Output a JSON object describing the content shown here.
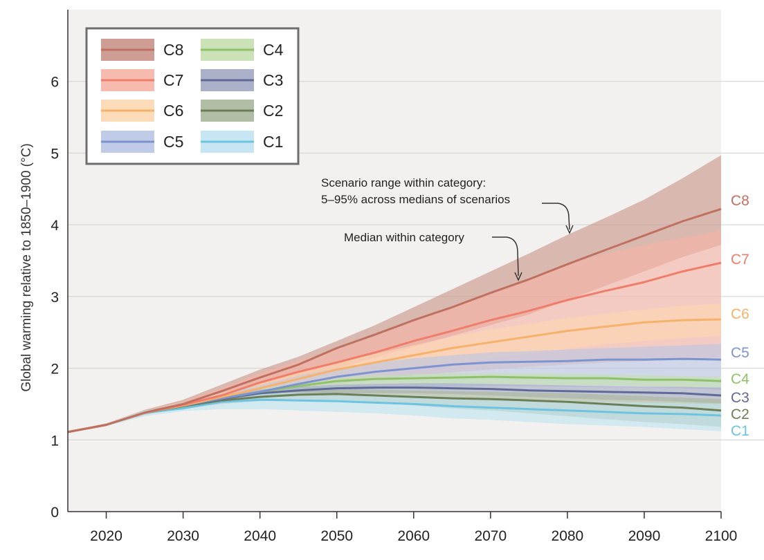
{
  "chart_data": {
    "type": "line",
    "title": "",
    "xlabel": "",
    "ylabel": "Global warming relative to 1850–1900 (°C)",
    "xlim": [
      2015,
      2100
    ],
    "ylim": [
      0,
      7
    ],
    "x_ticks": [
      2020,
      2030,
      2040,
      2050,
      2060,
      2070,
      2080,
      2090,
      2100
    ],
    "y_ticks": [
      0,
      1,
      2,
      3,
      4,
      5,
      6
    ],
    "grid": "horizontal",
    "legend": "top-left",
    "x": [
      2015,
      2020,
      2025,
      2030,
      2035,
      2040,
      2045,
      2050,
      2055,
      2060,
      2065,
      2070,
      2075,
      2080,
      2085,
      2090,
      2095,
      2100
    ],
    "series": [
      {
        "name": "C8",
        "color": "#c0705f",
        "band_color": "#c99488",
        "median": [
          1.11,
          1.21,
          1.38,
          1.5,
          1.68,
          1.87,
          2.05,
          2.28,
          2.47,
          2.67,
          2.85,
          3.05,
          3.24,
          3.45,
          3.65,
          3.85,
          4.05,
          4.22
        ],
        "low": [
          1.1,
          1.2,
          1.35,
          1.47,
          1.62,
          1.76,
          1.88,
          2.0,
          2.15,
          2.3,
          2.45,
          2.6,
          2.75,
          2.95,
          3.15,
          3.35,
          3.55,
          3.72
        ],
        "high": [
          1.12,
          1.23,
          1.42,
          1.56,
          1.77,
          1.98,
          2.16,
          2.38,
          2.6,
          2.85,
          3.1,
          3.35,
          3.6,
          3.86,
          4.1,
          4.35,
          4.65,
          4.97
        ]
      },
      {
        "name": "C7",
        "color": "#f07d6a",
        "band_color": "#f6b3a6",
        "median": [
          1.11,
          1.21,
          1.38,
          1.49,
          1.62,
          1.8,
          1.95,
          2.08,
          2.22,
          2.38,
          2.52,
          2.67,
          2.8,
          2.95,
          3.08,
          3.2,
          3.35,
          3.47
        ],
        "low": [
          1.1,
          1.2,
          1.35,
          1.46,
          1.55,
          1.65,
          1.72,
          1.78,
          1.84,
          1.9,
          1.94,
          1.98,
          2.02,
          2.05,
          2.08,
          2.1,
          2.12,
          2.15
        ],
        "high": [
          1.12,
          1.23,
          1.42,
          1.54,
          1.72,
          1.93,
          2.1,
          2.26,
          2.45,
          2.65,
          2.85,
          3.05,
          3.25,
          3.45,
          3.6,
          3.72,
          3.82,
          3.92
        ]
      },
      {
        "name": "C6",
        "color": "#f6b26b",
        "band_color": "#fbd7b0",
        "median": [
          1.11,
          1.21,
          1.38,
          1.48,
          1.6,
          1.72,
          1.85,
          1.98,
          2.08,
          2.18,
          2.28,
          2.36,
          2.44,
          2.52,
          2.58,
          2.64,
          2.67,
          2.68
        ],
        "low": [
          1.1,
          1.2,
          1.35,
          1.45,
          1.55,
          1.64,
          1.73,
          1.82,
          1.9,
          1.98,
          2.06,
          2.13,
          2.2,
          2.27,
          2.33,
          2.38,
          2.42,
          2.45
        ],
        "high": [
          1.12,
          1.22,
          1.41,
          1.52,
          1.65,
          1.8,
          1.95,
          2.08,
          2.2,
          2.32,
          2.44,
          2.54,
          2.62,
          2.7,
          2.76,
          2.82,
          2.87,
          2.9
        ]
      },
      {
        "name": "C5",
        "color": "#7d93cf",
        "band_color": "#b9c6e4",
        "median": [
          1.11,
          1.21,
          1.38,
          1.48,
          1.58,
          1.67,
          1.78,
          1.88,
          1.95,
          2.0,
          2.05,
          2.08,
          2.09,
          2.1,
          2.12,
          2.12,
          2.13,
          2.12
        ],
        "low": [
          1.1,
          1.2,
          1.35,
          1.45,
          1.52,
          1.58,
          1.63,
          1.68,
          1.71,
          1.73,
          1.74,
          1.75,
          1.75,
          1.74,
          1.74,
          1.73,
          1.72,
          1.7
        ],
        "high": [
          1.12,
          1.22,
          1.41,
          1.52,
          1.64,
          1.76,
          1.89,
          2.0,
          2.08,
          2.14,
          2.18,
          2.22,
          2.24,
          2.26,
          2.28,
          2.3,
          2.32,
          2.34
        ]
      },
      {
        "name": "C4",
        "color": "#8fc16b",
        "band_color": "#c5dfae",
        "median": [
          1.11,
          1.21,
          1.38,
          1.48,
          1.58,
          1.67,
          1.75,
          1.82,
          1.85,
          1.86,
          1.87,
          1.88,
          1.87,
          1.86,
          1.86,
          1.84,
          1.84,
          1.82
        ],
        "low": [
          1.1,
          1.2,
          1.35,
          1.45,
          1.54,
          1.62,
          1.68,
          1.74,
          1.77,
          1.78,
          1.78,
          1.78,
          1.77,
          1.76,
          1.76,
          1.75,
          1.74,
          1.73
        ],
        "high": [
          1.12,
          1.22,
          1.41,
          1.52,
          1.62,
          1.71,
          1.8,
          1.87,
          1.9,
          1.92,
          1.93,
          1.93,
          1.93,
          1.92,
          1.91,
          1.9,
          1.89,
          1.88
        ]
      },
      {
        "name": "C3",
        "color": "#5f6a95",
        "band_color": "#a3a9c4",
        "median": [
          1.11,
          1.21,
          1.38,
          1.48,
          1.57,
          1.65,
          1.69,
          1.72,
          1.73,
          1.73,
          1.72,
          1.71,
          1.69,
          1.68,
          1.67,
          1.66,
          1.65,
          1.62
        ],
        "low": [
          1.1,
          1.2,
          1.35,
          1.45,
          1.53,
          1.6,
          1.63,
          1.65,
          1.65,
          1.65,
          1.64,
          1.62,
          1.6,
          1.58,
          1.56,
          1.55,
          1.53,
          1.51
        ],
        "high": [
          1.12,
          1.22,
          1.41,
          1.51,
          1.61,
          1.7,
          1.74,
          1.77,
          1.78,
          1.79,
          1.79,
          1.78,
          1.77,
          1.76,
          1.75,
          1.74,
          1.74,
          1.73
        ]
      },
      {
        "name": "C2",
        "color": "#6b7e56",
        "band_color": "#a9b79b",
        "median": [
          1.11,
          1.21,
          1.38,
          1.47,
          1.55,
          1.6,
          1.63,
          1.64,
          1.62,
          1.6,
          1.58,
          1.57,
          1.55,
          1.53,
          1.5,
          1.47,
          1.45,
          1.41
        ],
        "low": [
          1.1,
          1.2,
          1.35,
          1.44,
          1.5,
          1.54,
          1.55,
          1.55,
          1.52,
          1.48,
          1.44,
          1.41,
          1.37,
          1.33,
          1.29,
          1.25,
          1.22,
          1.18
        ],
        "high": [
          1.12,
          1.22,
          1.41,
          1.5,
          1.58,
          1.64,
          1.68,
          1.7,
          1.7,
          1.69,
          1.68,
          1.67,
          1.66,
          1.65,
          1.63,
          1.61,
          1.59,
          1.57
        ]
      },
      {
        "name": "C1",
        "color": "#6ec3e0",
        "band_color": "#bfe3f1",
        "median": [
          1.11,
          1.21,
          1.38,
          1.44,
          1.53,
          1.56,
          1.55,
          1.54,
          1.52,
          1.5,
          1.47,
          1.45,
          1.43,
          1.41,
          1.39,
          1.37,
          1.36,
          1.34
        ],
        "low": [
          1.1,
          1.19,
          1.33,
          1.4,
          1.43,
          1.43,
          1.41,
          1.39,
          1.37,
          1.34,
          1.3,
          1.28,
          1.25,
          1.22,
          1.2,
          1.18,
          1.15,
          1.12
        ],
        "high": [
          1.12,
          1.23,
          1.41,
          1.48,
          1.6,
          1.66,
          1.66,
          1.65,
          1.64,
          1.62,
          1.6,
          1.58,
          1.56,
          1.55,
          1.53,
          1.52,
          1.51,
          1.5
        ]
      }
    ],
    "annotations": [
      {
        "text_lines": [
          "Scenario range within category:",
          "5–95% across medians of scenarios"
        ]
      },
      {
        "text_lines": [
          "Median within category"
        ]
      }
    ]
  }
}
